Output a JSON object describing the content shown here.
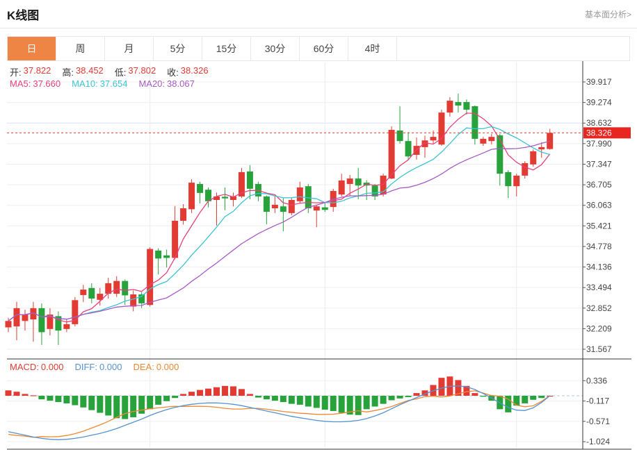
{
  "header": {
    "title": "K线图",
    "link_label": "基本面分析>"
  },
  "tabs": [
    {
      "label": "日",
      "active": true
    },
    {
      "label": "周",
      "active": false
    },
    {
      "label": "月",
      "active": false
    },
    {
      "label": "5分",
      "active": false
    },
    {
      "label": "15分",
      "active": false
    },
    {
      "label": "30分",
      "active": false
    },
    {
      "label": "60分",
      "active": false
    },
    {
      "label": "4时",
      "active": false
    }
  ],
  "price_info": {
    "items": [
      {
        "label": "开:",
        "value": "37.822"
      },
      {
        "label": "高:",
        "value": "38.452"
      },
      {
        "label": "低:",
        "value": "37.802"
      },
      {
        "label": "收:",
        "value": "38.326"
      }
    ]
  },
  "ma_info": {
    "items": [
      {
        "label": "MA5:",
        "value": "37.660",
        "color": "#e8417c"
      },
      {
        "label": "MA10:",
        "value": "37.654",
        "color": "#3bc4d4"
      },
      {
        "label": "MA20:",
        "value": "38.067",
        "color": "#a75ac4"
      }
    ]
  },
  "macd_info": {
    "items": [
      {
        "label": "MACD:",
        "value": "0.000",
        "color": "#e23b33"
      },
      {
        "label": "DIFF:",
        "value": "0.000",
        "color": "#5593d0"
      },
      {
        "label": "DEA:",
        "value": "0.000",
        "color": "#ee8831"
      }
    ]
  },
  "colors": {
    "up": "#e23b33",
    "down": "#28a33c",
    "tab_active": "#ee8544",
    "last_price_line": "#f03b30",
    "last_price_tag_bg": "#e8251f",
    "grid": "#efefef",
    "grid_blue": "#d3e3f1",
    "vgrid": "#e9edf1",
    "axis": "#444",
    "zero_dash": "#aac9e4",
    "ma5": "#e8417c",
    "ma10": "#3bc4d4",
    "ma20": "#a75ac4",
    "diff": "#5593d0",
    "dea": "#ee8831"
  },
  "chart_data": {
    "type": "candlestick",
    "panels": [
      "price",
      "macd"
    ],
    "price_ticks": [
      "39.917",
      "39.274",
      "38.632",
      "37.990",
      "37.347",
      "36.705",
      "36.063",
      "35.421",
      "34.778",
      "34.136",
      "33.494",
      "32.852",
      "32.209",
      "31.567"
    ],
    "price_tick_values": [
      39.917,
      39.274,
      38.632,
      37.99,
      37.347,
      36.705,
      36.063,
      35.421,
      34.778,
      34.136,
      33.494,
      32.852,
      32.209,
      31.567
    ],
    "last_price": 38.326,
    "last_price_label": "38.326",
    "ma_periods": [
      5,
      10,
      20
    ],
    "grid_vline_indices": [
      17,
      38,
      61
    ],
    "candles_format": "open,high,low,close (red=up, green=down)",
    "candles": [
      [
        32.25,
        32.55,
        32.1,
        32.45
      ],
      [
        32.28,
        33.05,
        31.85,
        32.85
      ],
      [
        32.45,
        32.8,
        32.15,
        32.65
      ],
      [
        32.5,
        33.05,
        31.8,
        32.85
      ],
      [
        32.85,
        33.0,
        31.7,
        32.1
      ],
      [
        32.2,
        32.85,
        32.0,
        32.65
      ],
      [
        32.6,
        32.75,
        31.7,
        32.15
      ],
      [
        32.2,
        32.5,
        32.1,
        32.35
      ],
      [
        32.35,
        33.2,
        32.28,
        33.1
      ],
      [
        33.26,
        33.58,
        33.04,
        33.43
      ],
      [
        33.48,
        33.63,
        33.0,
        33.15
      ],
      [
        33.11,
        33.48,
        32.93,
        33.3
      ],
      [
        33.3,
        33.8,
        33.15,
        33.63
      ],
      [
        33.3,
        33.85,
        33.2,
        33.7
      ],
      [
        33.7,
        33.75,
        32.95,
        33.25
      ],
      [
        32.9,
        33.4,
        32.75,
        33.28
      ],
      [
        33.28,
        33.35,
        32.85,
        33.0
      ],
      [
        32.95,
        34.75,
        32.9,
        34.7
      ],
      [
        34.65,
        34.72,
        33.9,
        34.4
      ],
      [
        34.5,
        34.68,
        34.12,
        34.42
      ],
      [
        34.42,
        36.04,
        34.38,
        35.58
      ],
      [
        35.58,
        36.1,
        35.46,
        35.97
      ],
      [
        35.94,
        36.88,
        35.82,
        36.77
      ],
      [
        36.73,
        36.8,
        36.12,
        36.45
      ],
      [
        36.55,
        36.62,
        36.0,
        36.19
      ],
      [
        36.23,
        36.46,
        35.43,
        36.34
      ],
      [
        36.33,
        36.62,
        35.91,
        36.28
      ],
      [
        36.23,
        36.46,
        36.03,
        36.34
      ],
      [
        36.34,
        37.23,
        36.29,
        37.1
      ],
      [
        37.12,
        37.32,
        36.25,
        36.58
      ],
      [
        36.73,
        36.8,
        36.19,
        36.34
      ],
      [
        36.34,
        36.37,
        35.47,
        35.86
      ],
      [
        35.97,
        36.4,
        35.82,
        36.08
      ],
      [
        36.03,
        36.3,
        35.25,
        35.86
      ],
      [
        35.82,
        36.3,
        35.75,
        36.23
      ],
      [
        36.19,
        36.8,
        36.12,
        36.62
      ],
      [
        36.66,
        36.73,
        35.82,
        35.97
      ],
      [
        35.9,
        36.08,
        35.38,
        36.03
      ],
      [
        36.0,
        36.14,
        35.86,
        35.92
      ],
      [
        36.01,
        36.58,
        35.86,
        36.51
      ],
      [
        36.4,
        37.05,
        36.34,
        36.84
      ],
      [
        36.73,
        37.01,
        36.36,
        36.9
      ],
      [
        36.9,
        37.23,
        36.25,
        36.68
      ],
      [
        36.77,
        36.85,
        36.23,
        36.68
      ],
      [
        36.68,
        36.73,
        36.23,
        36.34
      ],
      [
        36.4,
        37.05,
        36.34,
        36.99
      ],
      [
        36.9,
        38.53,
        36.88,
        38.42
      ],
      [
        38.4,
        39.16,
        37.99,
        38.07
      ],
      [
        38.07,
        38.35,
        37.49,
        37.59
      ],
      [
        37.64,
        38.18,
        37.49,
        37.92
      ],
      [
        37.88,
        38.24,
        37.55,
        38.09
      ],
      [
        38.09,
        38.4,
        37.99,
        38.2
      ],
      [
        37.96,
        39.05,
        37.92,
        38.96
      ],
      [
        38.96,
        39.44,
        38.83,
        39.33
      ],
      [
        39.29,
        39.55,
        38.96,
        39.18
      ],
      [
        39.29,
        39.37,
        38.9,
        39.05
      ],
      [
        39.16,
        39.18,
        37.96,
        38.14
      ],
      [
        37.99,
        38.2,
        37.92,
        38.14
      ],
      [
        38.07,
        38.29,
        37.96,
        38.2
      ],
      [
        38.25,
        38.29,
        36.68,
        37.05
      ],
      [
        37.1,
        37.16,
        36.29,
        36.66
      ],
      [
        36.66,
        37.05,
        36.34,
        36.99
      ],
      [
        36.99,
        37.44,
        36.9,
        37.38
      ],
      [
        37.34,
        37.81,
        37.27,
        37.75
      ],
      [
        37.81,
        38.03,
        37.55,
        37.88
      ],
      [
        37.822,
        38.452,
        37.802,
        38.326
      ]
    ],
    "macd": {
      "ticks": [
        "0.336",
        "-0.117",
        "-0.571",
        "-1.024"
      ],
      "tick_values": [
        0.336,
        -0.117,
        -0.571,
        -1.024
      ],
      "hist": [
        0.12,
        0.09,
        0.04,
        0.01,
        -0.08,
        -0.11,
        -0.14,
        -0.17,
        -0.21,
        -0.26,
        -0.32,
        -0.38,
        -0.44,
        -0.5,
        -0.52,
        -0.48,
        -0.4,
        -0.3,
        -0.2,
        -0.12,
        -0.05,
        0.04,
        0.09,
        0.13,
        0.16,
        0.19,
        0.22,
        0.21,
        0.15,
        0.04,
        -0.04,
        -0.08,
        -0.11,
        -0.14,
        -0.18,
        -0.2,
        -0.24,
        -0.27,
        -0.31,
        -0.34,
        -0.38,
        -0.42,
        -0.43,
        -0.3,
        -0.24,
        -0.18,
        -0.1,
        -0.06,
        -0.03,
        0.06,
        0.12,
        0.24,
        0.4,
        0.43,
        0.35,
        0.22,
        0.06,
        -0.02,
        -0.11,
        -0.3,
        -0.37,
        -0.22,
        -0.17,
        -0.09,
        -0.05,
        0.0
      ],
      "diff": [
        -0.8,
        -0.84,
        -0.88,
        -0.92,
        -0.95,
        -0.97,
        -0.98,
        -0.97,
        -0.95,
        -0.92,
        -0.88,
        -0.84,
        -0.79,
        -0.73,
        -0.66,
        -0.59,
        -0.52,
        -0.44,
        -0.37,
        -0.31,
        -0.26,
        -0.22,
        -0.19,
        -0.17,
        -0.16,
        -0.16,
        -0.17,
        -0.19,
        -0.22,
        -0.26,
        -0.3,
        -0.34,
        -0.38,
        -0.42,
        -0.46,
        -0.49,
        -0.52,
        -0.55,
        -0.57,
        -0.58,
        -0.58,
        -0.57,
        -0.55,
        -0.51,
        -0.45,
        -0.38,
        -0.29,
        -0.2,
        -0.12,
        -0.04,
        0.04,
        0.11,
        0.17,
        0.21,
        0.22,
        0.2,
        0.14,
        0.05,
        -0.05,
        -0.16,
        -0.26,
        -0.32,
        -0.33,
        -0.27,
        -0.15,
        0.0
      ]
    }
  }
}
